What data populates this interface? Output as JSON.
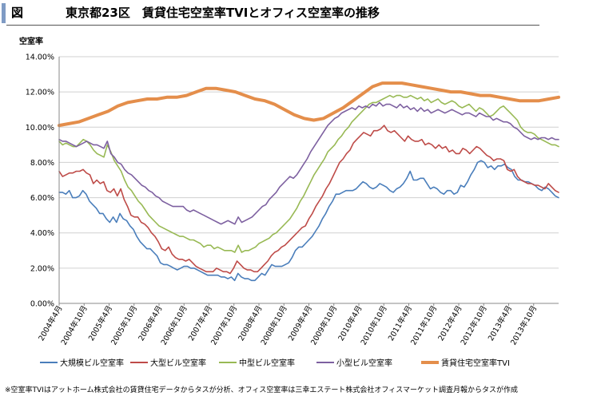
{
  "header": {
    "fig_label": "図",
    "title": "東京都23区　賃貸住宅空室率TVIとオフィス空室率の推移"
  },
  "footnote": "※空室率TVIはアットホーム株式会社の賃貸住宅データからタスが分析、オフィス空室率は三幸エステート株式会社オフィスマーケット調査月報からタスが作成",
  "chart_data": {
    "type": "line",
    "ylabel": "空室率",
    "ylim": [
      0,
      14
    ],
    "yticks": [
      "0.00%",
      "2.00%",
      "4.00%",
      "6.00%",
      "8.00%",
      "10.00%",
      "12.00%",
      "14.00%"
    ],
    "grid": true,
    "legend_position": "bottom",
    "x_labels": [
      "2004年4月",
      "2004年10月",
      "2005年4月",
      "2005年10月",
      "2006年4月",
      "2006年10月",
      "2007年4月",
      "2007年10月",
      "2008年4月",
      "2008年10月",
      "2009年4月",
      "2009年10月",
      "2010年4月",
      "2010年10月",
      "2011年4月",
      "2011年10月",
      "2012年4月",
      "2012年10月",
      "2013年4月",
      "2013年10月"
    ],
    "series": [
      {
        "name": "大規模ビル空室率",
        "color": "#4a7ebb",
        "values": [
          6.3,
          6.3,
          6.2,
          6.4,
          6.0,
          6.0,
          6.1,
          6.4,
          6.2,
          5.8,
          5.6,
          5.4,
          5.1,
          5.1,
          4.8,
          4.6,
          4.9,
          4.6,
          5.1,
          4.8,
          4.7,
          4.4,
          4.2,
          3.8,
          3.5,
          3.3,
          3.1,
          3.1,
          2.9,
          2.7,
          2.3,
          2.2,
          2.2,
          2.1,
          2.0,
          1.9,
          2.0,
          2.1,
          2.1,
          2.0,
          2.0,
          1.9,
          1.8,
          1.7,
          1.6,
          1.6,
          1.6,
          1.6,
          1.5,
          1.5,
          1.4,
          1.5,
          1.3,
          1.7,
          1.5,
          1.4,
          1.4,
          1.3,
          1.3,
          1.5,
          1.7,
          1.6,
          1.9,
          2.2,
          2.1,
          2.1,
          2.1,
          2.2,
          2.3,
          2.6,
          3.0,
          3.2,
          3.2,
          3.4,
          3.6,
          3.8,
          4.1,
          4.4,
          4.8,
          5.1,
          5.5,
          5.8,
          6.2,
          6.2,
          6.3,
          6.4,
          6.4,
          6.4,
          6.5,
          6.7,
          6.9,
          6.8,
          6.6,
          6.5,
          6.6,
          6.8,
          6.7,
          6.6,
          6.4,
          6.3,
          6.5,
          6.6,
          6.8,
          7.1,
          7.5,
          7.0,
          7.0,
          7.1,
          7.1,
          6.8,
          6.5,
          6.6,
          6.5,
          6.3,
          6.2,
          6.4,
          6.4,
          6.2,
          6.3,
          6.7,
          6.6,
          6.9,
          7.3,
          7.6,
          8.0,
          8.1,
          8.0,
          7.7,
          7.8,
          7.6,
          7.8,
          7.8,
          7.9,
          7.7,
          7.6,
          7.2,
          7.0,
          7.0,
          6.9,
          6.9,
          6.8,
          6.7,
          6.5,
          6.4,
          6.6,
          6.5,
          6.3,
          6.1,
          6.0
        ]
      },
      {
        "name": "大型ビル空室率",
        "color": "#be4b48",
        "values": [
          7.5,
          7.2,
          7.3,
          7.4,
          7.4,
          7.5,
          7.5,
          7.6,
          7.4,
          7.3,
          6.8,
          7.0,
          6.8,
          6.9,
          6.4,
          6.3,
          6.5,
          6.1,
          6.5,
          5.9,
          5.5,
          5.0,
          4.9,
          4.9,
          4.6,
          4.5,
          4.3,
          4.0,
          3.8,
          3.5,
          3.1,
          3.0,
          3.2,
          2.8,
          2.6,
          2.5,
          2.5,
          2.4,
          2.5,
          2.3,
          2.1,
          2.0,
          1.9,
          1.8,
          1.8,
          1.8,
          2.0,
          1.9,
          1.8,
          1.8,
          1.7,
          2.0,
          2.4,
          2.2,
          2.0,
          1.9,
          1.9,
          1.8,
          1.8,
          2.0,
          2.2,
          2.4,
          2.7,
          2.9,
          3.0,
          3.2,
          3.3,
          3.5,
          3.7,
          3.9,
          4.1,
          4.3,
          4.4,
          4.8,
          5.1,
          5.5,
          5.8,
          6.1,
          6.5,
          6.8,
          7.2,
          7.6,
          8.0,
          8.2,
          8.5,
          8.7,
          9.1,
          9.3,
          9.5,
          9.7,
          9.6,
          9.5,
          9.8,
          9.8,
          9.9,
          10.1,
          9.8,
          9.7,
          9.8,
          9.6,
          9.4,
          9.2,
          9.5,
          9.3,
          9.2,
          9.2,
          9.3,
          9.0,
          9.1,
          9.0,
          8.8,
          9.0,
          8.8,
          8.9,
          8.6,
          8.7,
          8.5,
          8.5,
          8.8,
          8.7,
          8.5,
          8.7,
          8.9,
          8.8,
          8.6,
          8.4,
          8.3,
          8.1,
          8.2,
          8.2,
          8.1,
          7.6,
          7.5,
          7.6,
          7.2,
          7.0,
          6.9,
          6.8,
          6.8,
          6.7,
          6.7,
          6.6,
          6.5,
          6.8,
          6.6,
          6.4,
          6.3
        ]
      },
      {
        "name": "中型ビル空室率",
        "color": "#98b954",
        "values": [
          9.2,
          9.0,
          9.1,
          9.0,
          8.9,
          8.9,
          9.1,
          9.3,
          9.2,
          9.0,
          8.7,
          8.5,
          8.4,
          8.3,
          9.0,
          8.6,
          8.1,
          7.8,
          7.5,
          7.0,
          6.6,
          6.4,
          6.1,
          5.8,
          5.6,
          5.3,
          5.0,
          4.8,
          4.6,
          4.4,
          4.3,
          4.2,
          4.1,
          4.0,
          3.9,
          3.8,
          3.8,
          3.7,
          3.6,
          3.6,
          3.5,
          3.4,
          3.2,
          3.3,
          3.3,
          3.1,
          3.2,
          3.1,
          3.0,
          3.0,
          3.0,
          2.9,
          3.3,
          2.9,
          3.0,
          3.0,
          3.1,
          3.2,
          3.4,
          3.5,
          3.6,
          3.7,
          3.9,
          4.0,
          4.2,
          4.4,
          4.6,
          4.8,
          5.1,
          5.4,
          5.8,
          6.1,
          6.5,
          6.9,
          7.3,
          7.6,
          7.9,
          8.2,
          8.6,
          8.8,
          9.0,
          9.3,
          9.5,
          9.8,
          10.0,
          10.3,
          10.5,
          10.7,
          10.9,
          11.1,
          11.3,
          11.4,
          11.4,
          11.5,
          11.6,
          11.7,
          11.8,
          11.7,
          11.8,
          11.8,
          11.7,
          11.7,
          11.8,
          11.7,
          11.6,
          11.7,
          11.5,
          11.6,
          11.4,
          11.5,
          11.6,
          11.4,
          11.3,
          11.4,
          11.5,
          11.4,
          11.2,
          11.1,
          11.2,
          11.3,
          11.1,
          10.9,
          11.1,
          11.0,
          10.8,
          10.6,
          10.7,
          10.9,
          11.1,
          11.2,
          11.0,
          10.8,
          10.6,
          10.4,
          10.0,
          9.8,
          9.7,
          9.7,
          9.6,
          9.4,
          9.3,
          9.2,
          9.1,
          9.0,
          9.0,
          8.9
        ]
      },
      {
        "name": "小型ビル空室率",
        "color": "#7d60a0",
        "values": [
          9.3,
          9.2,
          9.2,
          9.1,
          9.0,
          8.9,
          9.0,
          9.1,
          9.2,
          9.1,
          9.0,
          9.0,
          8.9,
          8.8,
          9.2,
          8.5,
          8.3,
          8.0,
          7.9,
          7.6,
          7.4,
          7.3,
          7.1,
          6.9,
          6.7,
          6.6,
          6.4,
          6.3,
          6.1,
          6.0,
          5.8,
          5.7,
          5.6,
          5.5,
          5.5,
          5.5,
          5.5,
          5.3,
          5.2,
          5.3,
          5.2,
          5.1,
          5.0,
          4.9,
          4.8,
          4.7,
          4.6,
          4.5,
          4.6,
          4.7,
          4.6,
          4.5,
          4.9,
          4.6,
          4.7,
          4.8,
          4.9,
          5.1,
          5.3,
          5.5,
          5.6,
          5.9,
          6.1,
          6.3,
          6.6,
          6.8,
          7.0,
          7.2,
          7.1,
          7.3,
          7.6,
          7.9,
          8.2,
          8.6,
          8.9,
          9.2,
          9.5,
          9.8,
          10.1,
          10.3,
          10.5,
          10.6,
          10.8,
          10.9,
          11.0,
          11.1,
          11.0,
          11.2,
          11.1,
          11.2,
          11.1,
          11.3,
          11.2,
          11.4,
          11.2,
          11.3,
          11.3,
          11.2,
          11.1,
          11.3,
          11.1,
          11.2,
          11.0,
          11.1,
          10.9,
          11.1,
          10.9,
          11.0,
          10.8,
          10.9,
          11.0,
          10.9,
          10.8,
          10.9,
          11.0,
          10.9,
          10.8,
          10.7,
          10.8,
          10.8,
          10.7,
          10.6,
          10.8,
          10.7,
          10.6,
          10.6,
          10.4,
          10.5,
          10.4,
          10.3,
          10.3,
          10.2,
          10.0,
          9.9,
          9.7,
          9.5,
          9.4,
          9.3,
          9.4,
          9.3,
          9.4,
          9.4,
          9.3,
          9.4,
          9.3,
          9.3
        ]
      },
      {
        "name": "賃貸住宅空室率TVI",
        "color": "#e48e4b",
        "values": [
          10.1,
          10.2,
          10.3,
          10.5,
          10.7,
          10.9,
          11.2,
          11.4,
          11.5,
          11.6,
          11.6,
          11.7,
          11.7,
          11.8,
          12.0,
          12.2,
          12.2,
          12.1,
          12.0,
          11.8,
          11.6,
          11.5,
          11.3,
          11.0,
          10.7,
          10.5,
          10.4,
          10.5,
          10.8,
          11.1,
          11.5,
          11.9,
          12.3,
          12.5,
          12.5,
          12.5,
          12.4,
          12.3,
          12.2,
          12.1,
          12.0,
          12.0,
          11.9,
          11.8,
          11.8,
          11.7,
          11.6,
          11.5,
          11.5,
          11.5,
          11.6,
          11.7
        ]
      }
    ]
  }
}
